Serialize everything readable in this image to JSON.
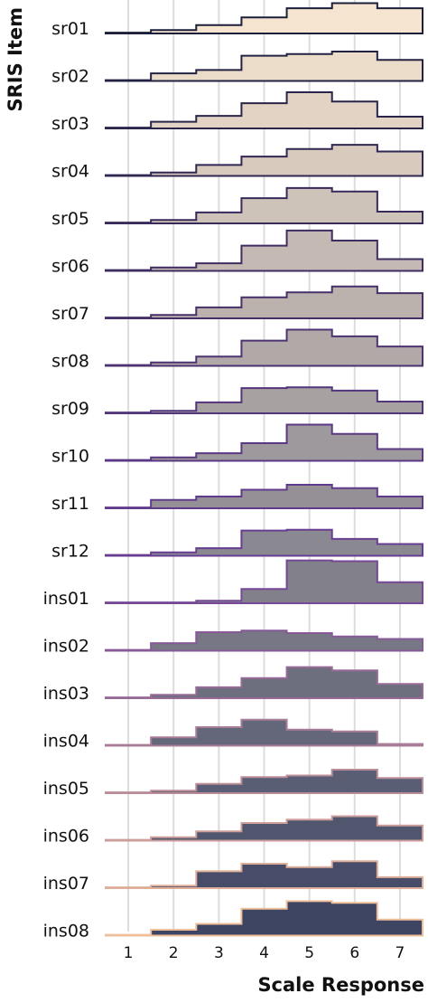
{
  "chart_data": {
    "type": "area",
    "subtype": "stepped-ridgeline",
    "xlabel": "Scale Response",
    "ylabel": "SRIS Item",
    "x": [
      1,
      2,
      3,
      4,
      5,
      6,
      7
    ],
    "x_tick_labels": [
      "1",
      "2",
      "3",
      "4",
      "5",
      "6",
      "7"
    ],
    "xlim": [
      0.5,
      7.5
    ],
    "grid": true,
    "items": [
      {
        "name": "sr01",
        "values": [
          0.01,
          0.04,
          0.1,
          0.19,
          0.3,
          0.36,
          0.3
        ]
      },
      {
        "name": "sr02",
        "values": [
          0.01,
          0.09,
          0.13,
          0.3,
          0.32,
          0.35,
          0.25
        ]
      },
      {
        "name": "sr03",
        "values": [
          0.01,
          0.08,
          0.15,
          0.3,
          0.43,
          0.32,
          0.14
        ]
      },
      {
        "name": "sr04",
        "values": [
          0.01,
          0.04,
          0.13,
          0.23,
          0.32,
          0.37,
          0.29
        ]
      },
      {
        "name": "sr05",
        "values": [
          0.01,
          0.04,
          0.13,
          0.3,
          0.42,
          0.38,
          0.14
        ]
      },
      {
        "name": "sr06",
        "values": [
          0.01,
          0.04,
          0.09,
          0.3,
          0.48,
          0.36,
          0.14
        ]
      },
      {
        "name": "sr07",
        "values": [
          0.01,
          0.04,
          0.13,
          0.25,
          0.31,
          0.38,
          0.3
        ]
      },
      {
        "name": "sr08",
        "values": [
          0.01,
          0.04,
          0.11,
          0.3,
          0.43,
          0.35,
          0.23
        ]
      },
      {
        "name": "sr09",
        "values": [
          0.01,
          0.03,
          0.13,
          0.3,
          0.31,
          0.27,
          0.14
        ]
      },
      {
        "name": "sr10",
        "values": [
          0.01,
          0.04,
          0.09,
          0.21,
          0.43,
          0.32,
          0.14
        ]
      },
      {
        "name": "sr11",
        "values": [
          0.01,
          0.1,
          0.14,
          0.22,
          0.28,
          0.24,
          0.14
        ]
      },
      {
        "name": "sr12",
        "values": [
          0.01,
          0.04,
          0.09,
          0.3,
          0.31,
          0.2,
          0.14
        ]
      },
      {
        "name": "ins01",
        "values": [
          0.01,
          0.01,
          0.03,
          0.17,
          0.51,
          0.5,
          0.25
        ]
      },
      {
        "name": "ins02",
        "values": [
          0.01,
          0.09,
          0.22,
          0.24,
          0.21,
          0.17,
          0.14
        ]
      },
      {
        "name": "ins03",
        "values": [
          0.01,
          0.04,
          0.13,
          0.24,
          0.37,
          0.33,
          0.17
        ]
      },
      {
        "name": "ins04",
        "values": [
          0.01,
          0.1,
          0.22,
          0.31,
          0.19,
          0.17,
          0.02
        ]
      },
      {
        "name": "ins05",
        "values": [
          0.01,
          0.03,
          0.11,
          0.19,
          0.21,
          0.28,
          0.18
        ]
      },
      {
        "name": "ins06",
        "values": [
          0.01,
          0.04,
          0.11,
          0.21,
          0.25,
          0.29,
          0.18
        ]
      },
      {
        "name": "ins07",
        "values": [
          0.01,
          0.03,
          0.2,
          0.29,
          0.25,
          0.32,
          0.13
        ]
      },
      {
        "name": "ins08",
        "values": [
          0.01,
          0.07,
          0.14,
          0.32,
          0.41,
          0.39,
          0.19
        ]
      }
    ],
    "colors": {
      "fill_start": "#f5e4cf",
      "fill_end": "#3d4563",
      "stroke_start": "#1c1f3a",
      "stroke_mid": "#6b3f96",
      "stroke_end": "#eebf9a",
      "grid": "#dcdcdc"
    }
  }
}
